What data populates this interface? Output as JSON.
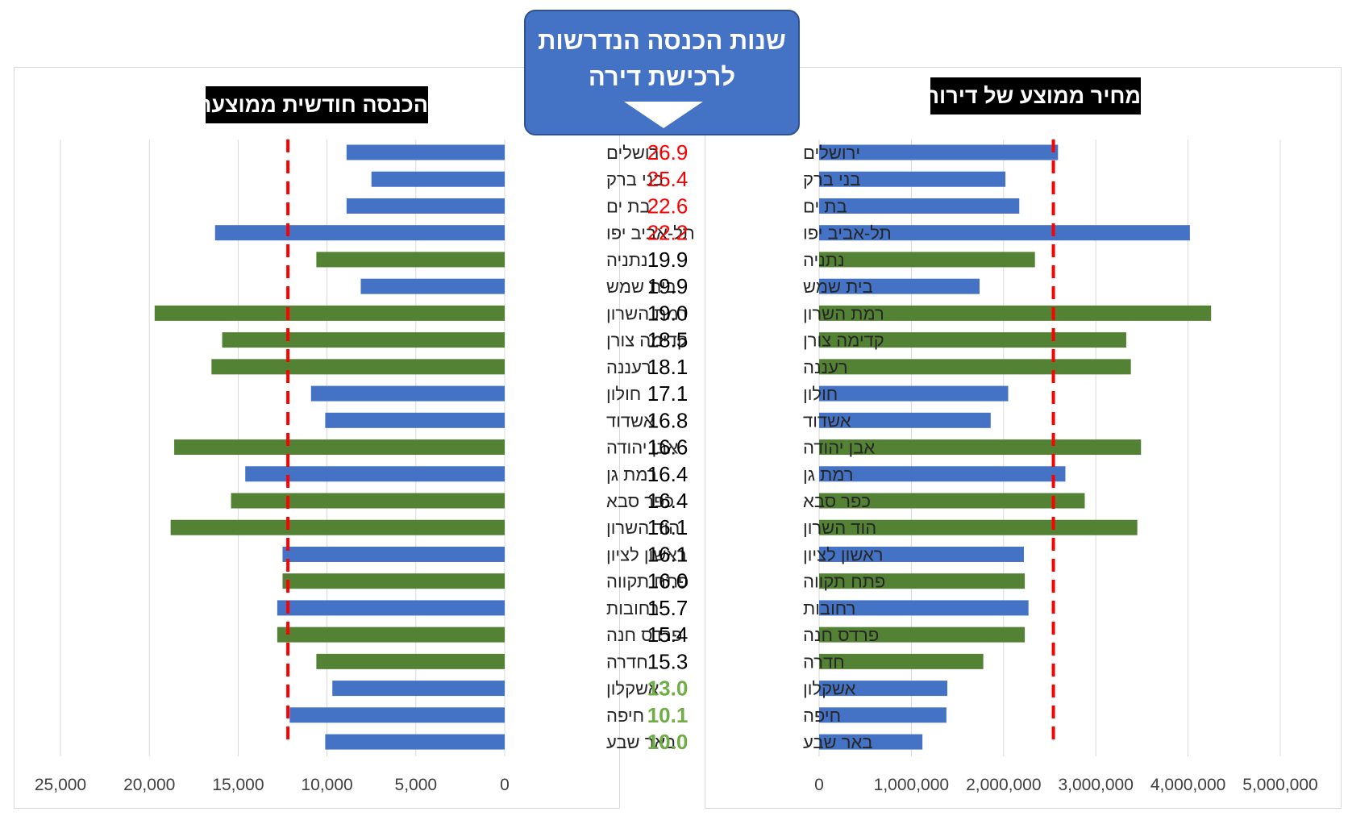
{
  "center_title_line1": "שנות הכנסה הנדרשות",
  "center_title_line2": "לרכישת דירה",
  "colors": {
    "blue": "#4472c4",
    "green": "#548235",
    "red_text": "#ff0000",
    "green_text": "#70ad47",
    "black_text": "#000000",
    "reference_line": "#ff0000"
  },
  "chart_data": [
    {
      "type": "bar",
      "orientation": "horizontal",
      "direction": "right-to-left",
      "title": "הכנסה חודשית ממוצעת",
      "categories": [
        "ירושלים",
        "בני ברק",
        "בת ים",
        "תל-אביב יפו",
        "נתניה",
        "בית שמש",
        "רמת השרון",
        "קדימה צורן",
        "רעננה",
        "חולון",
        "אשדוד",
        "אבן יהודה",
        "רמת גן",
        "כפר סבא",
        "הוד השרון",
        "ראשון לציון",
        "פתח תקווה",
        "רחובות",
        "פרדס חנה",
        "חדרה",
        "אשקלון",
        "חיפה",
        "באר שבע"
      ],
      "values": [
        8900,
        7500,
        8900,
        16300,
        10600,
        8100,
        19700,
        15900,
        16500,
        10900,
        10100,
        18600,
        14600,
        15400,
        18800,
        12500,
        12500,
        12800,
        12800,
        10600,
        9700,
        12100,
        10100
      ],
      "bar_colors": [
        "blue",
        "blue",
        "blue",
        "blue",
        "green",
        "blue",
        "green",
        "green",
        "green",
        "blue",
        "blue",
        "green",
        "blue",
        "green",
        "green",
        "blue",
        "green",
        "blue",
        "green",
        "green",
        "blue",
        "blue",
        "blue"
      ],
      "xlim": [
        0,
        25000
      ],
      "xticks": [
        "25,000",
        "20,000",
        "15,000",
        "10,000",
        "5,000",
        "0"
      ],
      "xtick_values": [
        25000,
        20000,
        15000,
        10000,
        5000,
        0
      ],
      "reference_line": 12200,
      "grid": true
    },
    {
      "type": "bar",
      "orientation": "horizontal",
      "title": "מחיר ממוצע של דירות",
      "categories": [
        "ירושלים",
        "בני ברק",
        "בת ים",
        "תל-אביב יפו",
        "נתניה",
        "בית שמש",
        "רמת השרון",
        "קדימה צורן",
        "רעננה",
        "חולון",
        "אשדוד",
        "אבן יהודה",
        "רמת גן",
        "כפר סבא",
        "הוד השרון",
        "ראשון לציון",
        "פתח תקווה",
        "רחובות",
        "פרדס חנה",
        "חדרה",
        "אשקלון",
        "חיפה",
        "באר שבע"
      ],
      "values": [
        2590000,
        2020000,
        2170000,
        4020000,
        2340000,
        1740000,
        4250000,
        3330000,
        3380000,
        2050000,
        1860000,
        3490000,
        2670000,
        2880000,
        3450000,
        2220000,
        2230000,
        2270000,
        2230000,
        1780000,
        1390000,
        1380000,
        1120000
      ],
      "bar_colors": [
        "blue",
        "blue",
        "blue",
        "blue",
        "green",
        "blue",
        "green",
        "green",
        "green",
        "blue",
        "blue",
        "green",
        "blue",
        "green",
        "green",
        "blue",
        "green",
        "blue",
        "green",
        "green",
        "blue",
        "blue",
        "blue"
      ],
      "xlim": [
        0,
        5000000
      ],
      "xticks": [
        "0",
        "1,000,000",
        "2,000,000",
        "3,000,000",
        "4,000,000",
        "5,000,000"
      ],
      "xtick_values": [
        0,
        1000000,
        2000000,
        3000000,
        4000000,
        5000000
      ],
      "reference_line": 2540000,
      "grid": true
    },
    {
      "type": "table",
      "title": "שנות הכנסה הנדרשות לרכישת דירה",
      "categories": [
        "ירושלים",
        "בני ברק",
        "בת ים",
        "תל-אביב יפו",
        "נתניה",
        "בית שמש",
        "רמת השרון",
        "קדימה צורן",
        "רעננה",
        "חולון",
        "אשדוד",
        "אבן יהודה",
        "רמת גן",
        "כפר סבא",
        "הוד השרון",
        "ראשון לציון",
        "פתח תקווה",
        "רחובות",
        "פרדס חנה",
        "חדרה",
        "אשקלון",
        "חיפה",
        "באר שבע"
      ],
      "values": [
        "26.9",
        "25.4",
        "22.6",
        "22.2",
        "19.9",
        "19.9",
        "19.0",
        "18.5",
        "18.1",
        "17.1",
        "16.8",
        "16.6",
        "16.4",
        "16.4",
        "16.1",
        "16.1",
        "16.0",
        "15.7",
        "15.4",
        "15.3",
        "13.0",
        "10.1",
        "10.0"
      ],
      "value_colors": [
        "red",
        "red",
        "red",
        "red",
        "black",
        "black",
        "black",
        "black",
        "black",
        "black",
        "black",
        "black",
        "black",
        "black",
        "black",
        "black",
        "black",
        "black",
        "black",
        "black",
        "green",
        "green",
        "green"
      ]
    }
  ]
}
